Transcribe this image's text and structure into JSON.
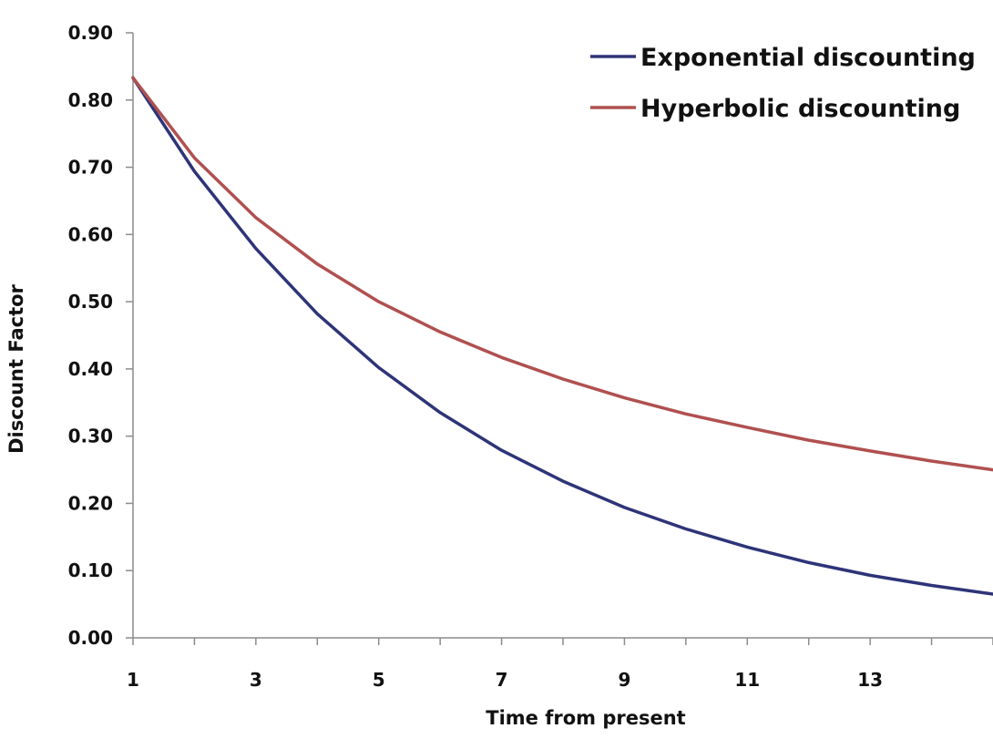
{
  "chart_data": {
    "type": "line",
    "title": "",
    "xlabel": "Time from present",
    "ylabel": "Discount Factor",
    "x": [
      1,
      2,
      3,
      4,
      5,
      6,
      7,
      8,
      9,
      10,
      11,
      12,
      13,
      14,
      15
    ],
    "x_ticks": [
      "1",
      "3",
      "5",
      "7",
      "9",
      "11",
      "13"
    ],
    "y_ticks": [
      "0.00",
      "0.10",
      "0.20",
      "0.30",
      "0.40",
      "0.50",
      "0.60",
      "0.70",
      "0.80",
      "0.90"
    ],
    "xlim": [
      1,
      15
    ],
    "ylim": [
      0,
      0.9
    ],
    "grid": false,
    "legend_position": "top-right",
    "series": [
      {
        "name": "Exponential discounting",
        "color": "#2e3478",
        "values": [
          0.833,
          0.694,
          0.579,
          0.482,
          0.402,
          0.335,
          0.279,
          0.233,
          0.194,
          0.162,
          0.135,
          0.112,
          0.093,
          0.078,
          0.065
        ]
      },
      {
        "name": "Hyperbolic discounting",
        "color": "#b05050",
        "values": [
          0.833,
          0.714,
          0.625,
          0.556,
          0.5,
          0.455,
          0.417,
          0.385,
          0.357,
          0.333,
          0.313,
          0.294,
          0.278,
          0.263,
          0.25
        ]
      }
    ]
  }
}
